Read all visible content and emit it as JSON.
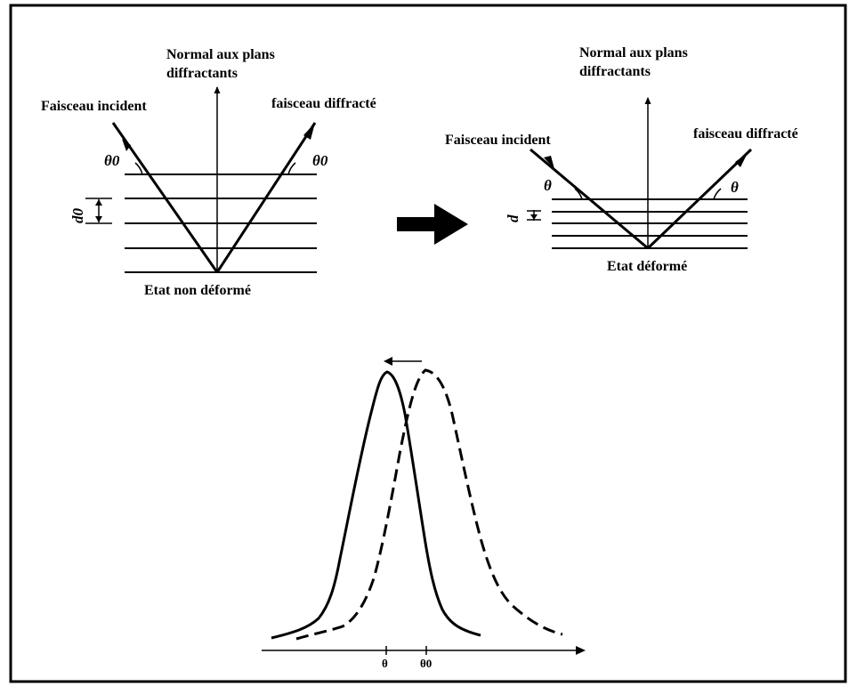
{
  "left_panel": {
    "normal_label_line1": "Normal aux plans",
    "normal_label_line2": "diffractants",
    "incident_label": "Faisceau incident",
    "diffracted_label": "faisceau diffracté",
    "angle_left": "θ0",
    "angle_right": "θ0",
    "spacing_label": "d0",
    "state_label": "Etat non déformé"
  },
  "right_panel": {
    "normal_label_line1": "Normal aux plans",
    "normal_label_line2": "diffractants",
    "incident_label": "Faisceau incident",
    "diffracted_label": "faisceau diffracté",
    "angle_left": "θ",
    "angle_right": "θ",
    "spacing_label": "d",
    "state_label": "Etat déformé"
  },
  "peaks": {
    "tick_theta": "θ",
    "tick_theta0": "θ0"
  }
}
